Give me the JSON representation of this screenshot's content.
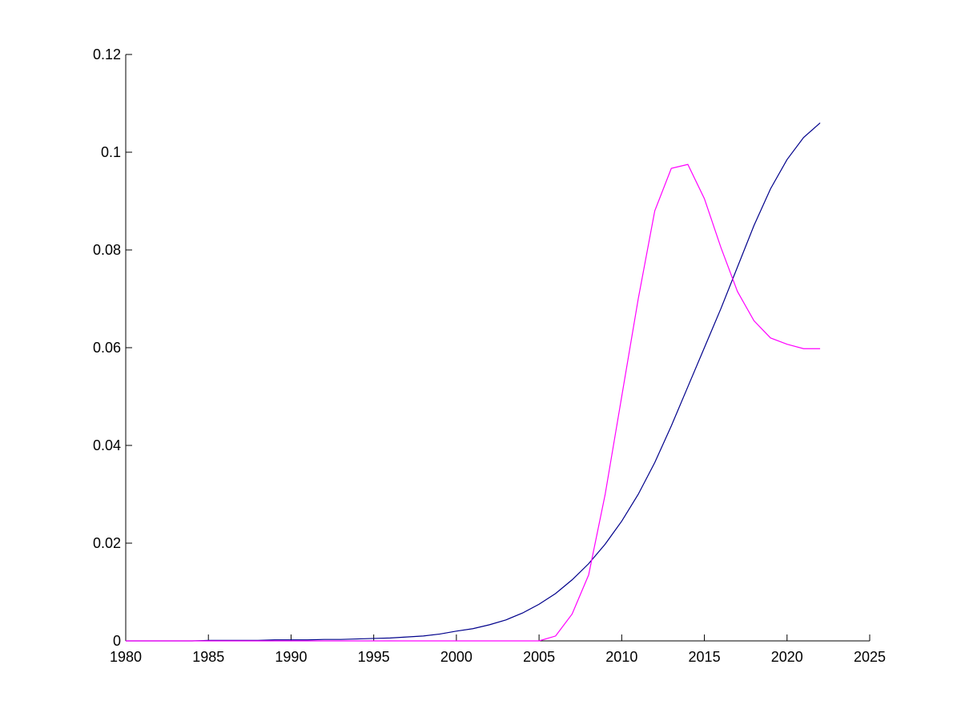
{
  "chart_data": {
    "type": "line",
    "x": [
      1980,
      1981,
      1982,
      1983,
      1984,
      1985,
      1986,
      1987,
      1988,
      1989,
      1990,
      1991,
      1992,
      1993,
      1994,
      1995,
      1996,
      1997,
      1998,
      1999,
      2000,
      2001,
      2002,
      2003,
      2004,
      2005,
      2006,
      2007,
      2008,
      2009,
      2010,
      2011,
      2012,
      2013,
      2014,
      2015,
      2016,
      2017,
      2018,
      2019,
      2020,
      2021,
      2022
    ],
    "series": [
      {
        "color": "#00008b",
        "values": [
          0,
          0,
          0,
          0,
          0,
          0.0001,
          0.0001,
          0.0001,
          0.0001,
          0.0002,
          0.0002,
          0.0002,
          0.0003,
          0.0003,
          0.0004,
          0.0005,
          0.0006,
          0.0008,
          0.001,
          0.0014,
          0.002,
          0.0025,
          0.0033,
          0.0043,
          0.0057,
          0.0075,
          0.0097,
          0.0125,
          0.0158,
          0.0198,
          0.0245,
          0.03,
          0.0365,
          0.044,
          0.052,
          0.06,
          0.068,
          0.0765,
          0.085,
          0.0925,
          0.0985,
          0.103,
          0.106
        ]
      },
      {
        "color": "#ff00ff",
        "values": [
          0,
          0,
          0,
          0,
          0,
          0,
          0,
          0,
          0,
          0,
          0,
          0,
          0,
          0,
          0,
          0,
          0,
          0,
          0,
          0,
          0,
          0,
          0,
          0,
          0,
          0,
          0.001,
          0.0055,
          0.0135,
          0.03,
          0.05,
          0.07,
          0.088,
          0.0967,
          0.0975,
          0.0905,
          0.0805,
          0.0715,
          0.0655,
          0.062,
          0.0607,
          0.0598,
          0.0598
        ]
      }
    ],
    "xlim": [
      1980,
      2025
    ],
    "xticks": [
      1980,
      1985,
      1990,
      1995,
      2000,
      2005,
      2010,
      2015,
      2020,
      2025
    ],
    "ylim": [
      0,
      0.12
    ],
    "yticks": [
      0,
      0.02,
      0.04,
      0.06,
      0.08,
      0.1,
      0.12
    ]
  }
}
